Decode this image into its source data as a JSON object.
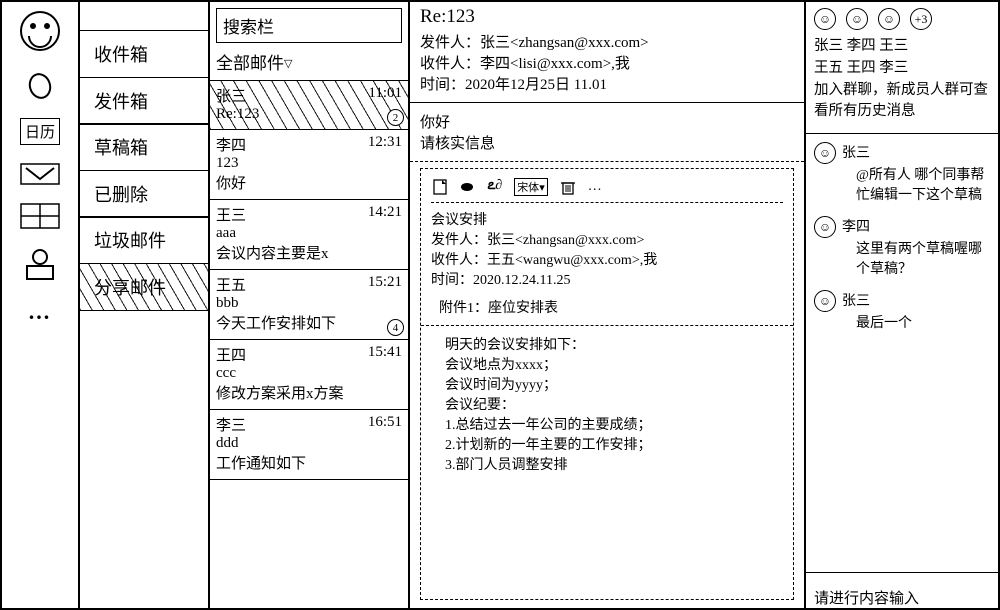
{
  "rail": {
    "calendar_label": "日历"
  },
  "folders": {
    "items": [
      {
        "label": "收件箱",
        "hatched": false
      },
      {
        "label": "发件箱",
        "hatched": false
      },
      {
        "label": "草稿箱",
        "hatched": false
      },
      {
        "label": "已删除",
        "hatched": false
      },
      {
        "label": "垃圾邮件",
        "hatched": false
      },
      {
        "label": "分享邮件",
        "hatched": true
      }
    ]
  },
  "list": {
    "search_placeholder": "搜索栏",
    "title": "全部邮件",
    "items": [
      {
        "from": "张三",
        "time": "11:01",
        "l2": "Re:123",
        "l3": "",
        "hatched": true,
        "badge": "2"
      },
      {
        "from": "李四",
        "time": "12:31",
        "l2": "123",
        "l3": "你好",
        "hatched": false,
        "badge": ""
      },
      {
        "from": "王三",
        "time": "14:21",
        "l2": "aaa",
        "l3": "会议内容主要是x",
        "hatched": false,
        "badge": ""
      },
      {
        "from": "王五",
        "time": "15:21",
        "l2": "bbb",
        "l3": "今天工作安排如下",
        "hatched": false,
        "badge": "4"
      },
      {
        "from": "王四",
        "time": "15:41",
        "l2": "ccc",
        "l3": "修改方案采用x方案",
        "hatched": false,
        "badge": ""
      },
      {
        "from": "李三",
        "time": "16:51",
        "l2": "ddd",
        "l3": "工作通知如下",
        "hatched": false,
        "badge": ""
      }
    ]
  },
  "read": {
    "subject": "Re:123",
    "from_label": "发件人：",
    "from": "张三<zhangsan@xxx.com>",
    "to_label": "收件人：",
    "to": "李四<lisi@xxx.com>,我",
    "time_label": "时间：",
    "time": "2020年12月25日 11.01",
    "body_l1": "你好",
    "body_l2": "请核实信息",
    "toolbar": {
      "font": "宋体"
    },
    "quoted": {
      "title": "会议安排",
      "from": "张三<zhangsan@xxx.com>",
      "to": "王五<wangwu@xxx.com>,我",
      "time": "2020.12.24.11.25",
      "attach": "附件1：座位安排表",
      "lines": [
        "明天的会议安排如下：",
        "会议地点为xxxx；",
        "会议时间为yyyy；",
        "会议纪要：",
        "1.总结过去一年公司的主要成绩；",
        "2.计划新的一年主要的工作安排；",
        "3.部门人员调整安排"
      ]
    }
  },
  "chat": {
    "plus_badge": "+3",
    "names_l1": "张三 李四 王三",
    "names_l2": "王五 王四 李三",
    "notice": "加入群聊，新成员人群可查看所有历史消息",
    "messages": [
      {
        "who": "张三",
        "body": "@所有人 哪个同事帮忙编辑一下这个草稿"
      },
      {
        "who": "李四",
        "body": "这里有两个草稿喔哪个草稿？"
      },
      {
        "who": "张三",
        "body": "最后一个"
      }
    ],
    "input_placeholder": "请进行内容输入"
  }
}
